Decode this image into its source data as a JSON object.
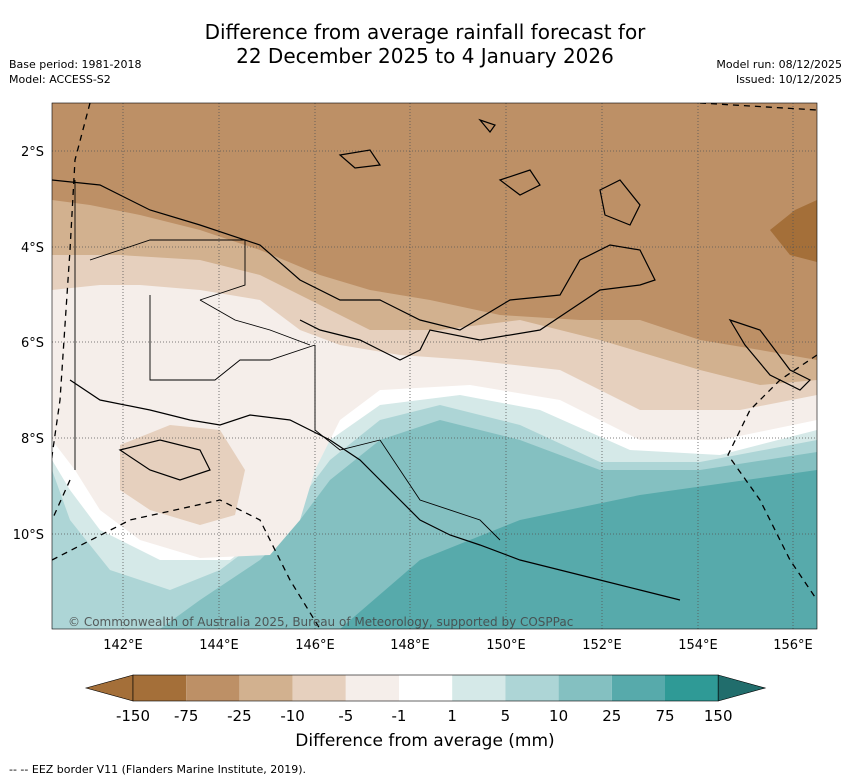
{
  "header": {
    "title_line1": "Difference from average rainfall forecast for",
    "title_line2": "22 December 2025 to 4 January 2026",
    "base_period": "Base period: 1981-2018",
    "model": "Model: ACCESS-S2",
    "model_run": "Model run: 08/12/2025",
    "issued": "Issued: 10/12/2025"
  },
  "map": {
    "lat_labels": [
      "2°S",
      "4°S",
      "6°S",
      "8°S",
      "10°S"
    ],
    "lon_labels": [
      "142°E",
      "144°E",
      "146°E",
      "148°E",
      "150°E",
      "152°E",
      "154°E",
      "156°E"
    ],
    "copyright": "© Commonwealth of Australia 2025, Bureau of Meteorology, supported by COSPPac"
  },
  "colorbar": {
    "ticks": [
      "-150",
      "-75",
      "-25",
      "-10",
      "-5",
      "-1",
      "1",
      "5",
      "10",
      "25",
      "75",
      "150"
    ],
    "colors": [
      "#a46f39",
      "#bd9066",
      "#d2b18f",
      "#e6d0be",
      "#f5eeea",
      "#ffffff",
      "#d5e9e8",
      "#add5d6",
      "#84c0c1",
      "#57aaab",
      "#2f9a96",
      "#216d6c"
    ],
    "label": "Difference from average (mm)"
  },
  "legend": {
    "eez_note": "-- -- EEZ border V11 (Flanders Marine Institute, 2019)."
  }
}
